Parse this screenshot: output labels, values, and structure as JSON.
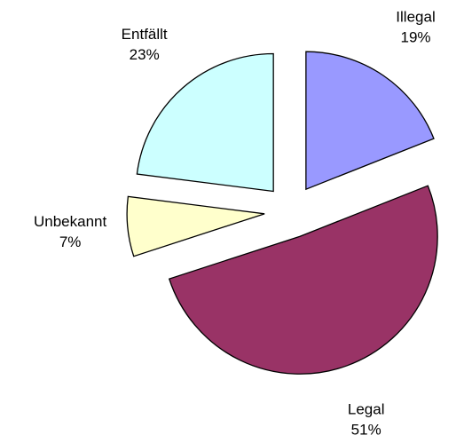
{
  "chart_data": {
    "type": "pie",
    "categories": [
      "Illegal",
      "Legal",
      "Unbekannt",
      "Entfällt"
    ],
    "values": [
      19,
      51,
      7,
      23
    ],
    "value_labels": [
      "19%",
      "51%",
      "7%",
      "23%"
    ],
    "colors": [
      "#9999ff",
      "#993366",
      "#ffffcc",
      "#ccffff"
    ]
  }
}
